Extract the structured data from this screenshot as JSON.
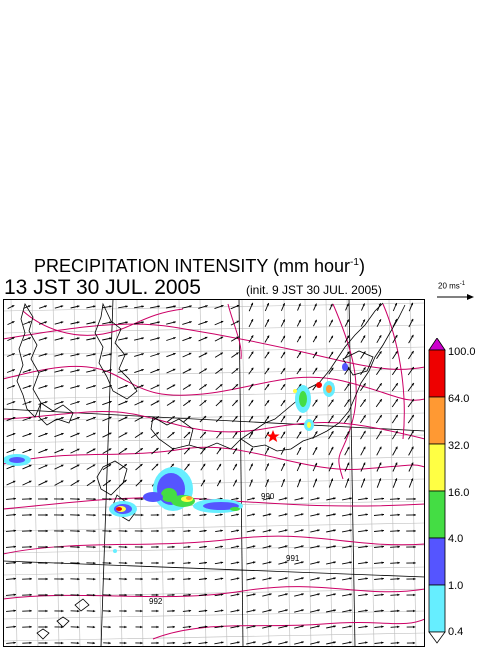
{
  "title": {
    "main": "PRECIPITATION INTENSITY (mm hour",
    "unit_sup": "-1",
    "close": ")"
  },
  "valid_time": "13 JST 30 JUL. 2005",
  "init_time": "(init. 9 JST 30 JUL. 2005)",
  "wind_scale": {
    "value": "20 ms",
    "sup": "-1"
  },
  "colorbar": {
    "labels": [
      "100.0",
      "64.0",
      "32.0",
      "16.0",
      "4.0",
      "1.0",
      "0.4"
    ],
    "colors": [
      "#cc00cc",
      "#ee0000",
      "#ff9933",
      "#ffff44",
      "#44dd44",
      "#5555ff",
      "#66eeff",
      "#ffffff"
    ]
  },
  "isobar_labels": [
    "990",
    "991",
    "992"
  ],
  "colors": {
    "coast": "#000000",
    "grid": "#999999",
    "isobar": "#cc0066",
    "star": "#ff0000"
  }
}
